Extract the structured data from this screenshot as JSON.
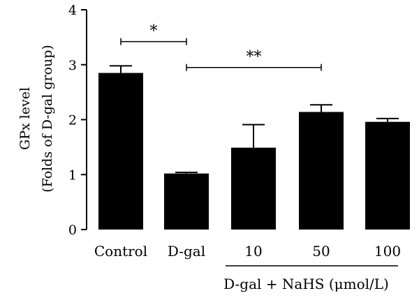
{
  "chart_data": {
    "type": "bar",
    "ylabel_line1": "GPx level",
    "ylabel_line2": "(Folds of D-gal group)",
    "ylim": [
      0,
      4
    ],
    "yticks": [
      "0",
      "1",
      "2",
      "3",
      "4"
    ],
    "categories": [
      "Control",
      "D-gal",
      "10",
      "50",
      "100"
    ],
    "values": [
      2.85,
      1.02,
      1.49,
      2.14,
      1.96
    ],
    "errors": [
      0.13,
      0.02,
      0.42,
      0.13,
      0.06
    ],
    "group_label": "D-gal + NaHS (μmol/L)",
    "group_span": [
      2,
      4
    ],
    "significance": [
      {
        "label": "*",
        "from": 0,
        "to": 1,
        "y": 3.42
      },
      {
        "label": "**",
        "from": 1,
        "to": 3,
        "y": 2.95
      }
    ],
    "bar_color": "#000000",
    "grid": false
  }
}
